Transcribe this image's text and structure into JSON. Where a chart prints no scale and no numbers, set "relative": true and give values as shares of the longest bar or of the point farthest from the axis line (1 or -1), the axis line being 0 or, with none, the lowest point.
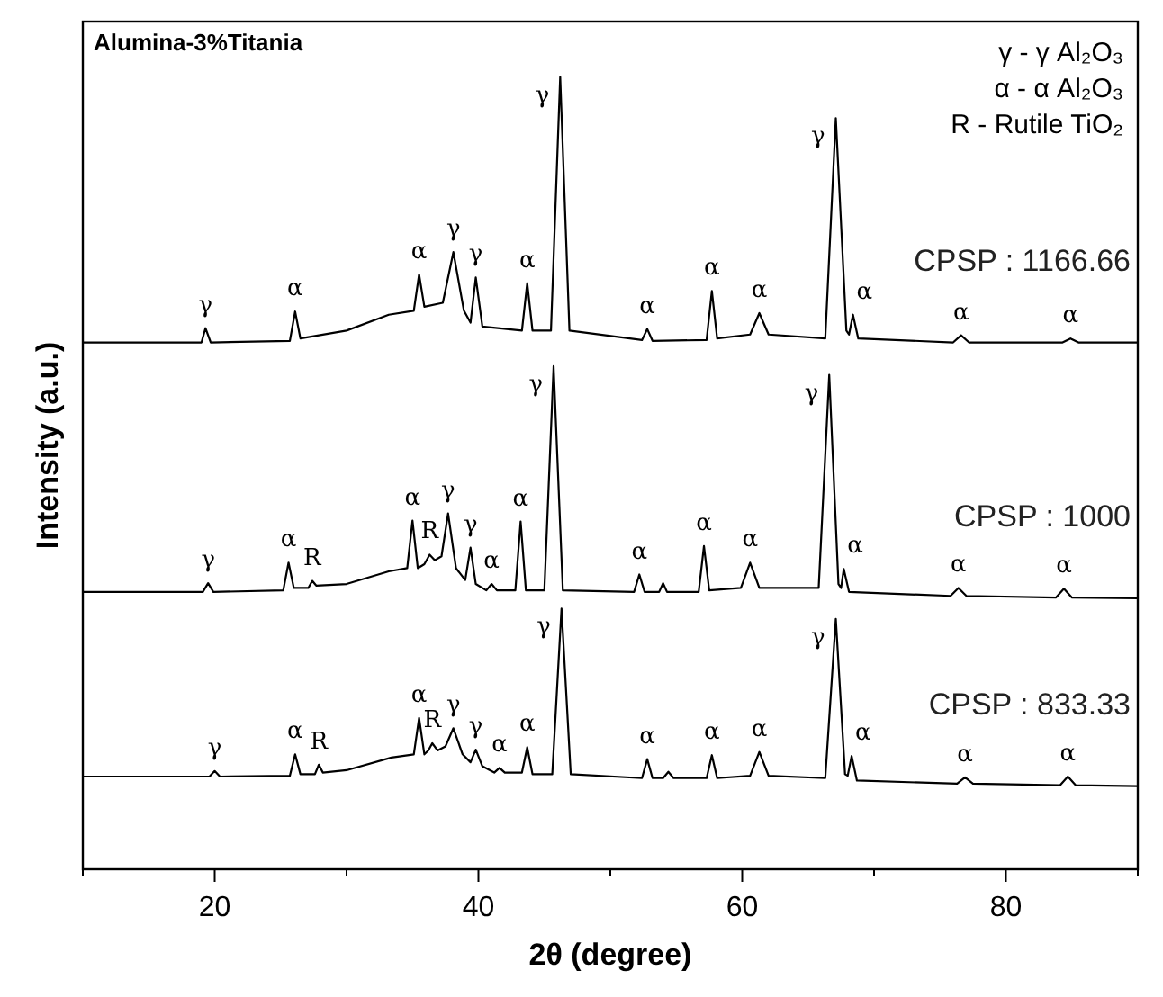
{
  "chart_data": {
    "type": "line",
    "title": "Alumina-3%Titania",
    "xlabel": "2θ (degree)",
    "ylabel": "Intensity (a.u.)",
    "relative": true,
    "marker": "none",
    "xlim": [
      10,
      90
    ],
    "xticks": [
      {
        "value": 10,
        "label": null
      },
      20,
      {
        "value": 30,
        "label": null
      },
      40,
      {
        "value": 50,
        "label": null
      },
      60,
      {
        "value": 70,
        "label": null
      },
      80,
      {
        "value": 90,
        "label": null
      }
    ],
    "series": [
      {
        "name": "CPSP : 1166.66",
        "color": "#000000",
        "x": [
          10,
          19,
          19.3,
          19.7,
          25.7,
          26.1,
          26.5,
          30,
          33.2,
          35.1,
          35.5,
          35.9,
          37.3,
          38.1,
          38.9,
          39.4,
          39.8,
          40.3,
          43.3,
          43.7,
          44.1,
          45.5,
          46.2,
          46.9,
          52.4,
          52.8,
          53.2,
          57.3,
          57.7,
          58.1,
          60.6,
          61.3,
          62.0,
          66.3,
          67.1,
          67.9,
          68.1,
          68.4,
          68.8,
          76.0,
          76.6,
          77.2,
          84.3,
          84.9,
          85.5,
          90
        ],
        "values": [
          0.665,
          0.665,
          0.683,
          0.665,
          0.667,
          0.704,
          0.67,
          0.68,
          0.7,
          0.705,
          0.751,
          0.71,
          0.715,
          0.779,
          0.705,
          0.69,
          0.747,
          0.685,
          0.68,
          0.74,
          0.68,
          0.68,
          1.0,
          0.68,
          0.668,
          0.682,
          0.667,
          0.668,
          0.73,
          0.67,
          0.675,
          0.702,
          0.675,
          0.67,
          0.948,
          0.68,
          0.675,
          0.7,
          0.67,
          0.665,
          0.674,
          0.665,
          0.665,
          0.67,
          0.665,
          0.665
        ]
      },
      {
        "name": "CPSP : 1000",
        "color": "#000000",
        "x": [
          10,
          19.1,
          19.5,
          19.9,
          25.2,
          25.6,
          26.0,
          27.1,
          27.4,
          27.7,
          30,
          33.2,
          34.6,
          35.0,
          35.4,
          35.9,
          36.3,
          36.7,
          37.2,
          37.7,
          38.3,
          39.0,
          39.4,
          39.8,
          40.6,
          41.0,
          41.4,
          42.8,
          43.2,
          43.6,
          45.0,
          45.7,
          46.4,
          51.8,
          52.2,
          52.6,
          53.7,
          54.0,
          54.3,
          56.7,
          57.1,
          57.5,
          59.9,
          60.6,
          61.3,
          65.8,
          66.6,
          67.3,
          67.5,
          67.7,
          68.1,
          75.8,
          76.4,
          77.0,
          83.8,
          84.4,
          85.0,
          90
        ],
        "values": [
          0.35,
          0.35,
          0.361,
          0.35,
          0.352,
          0.387,
          0.355,
          0.355,
          0.364,
          0.358,
          0.36,
          0.376,
          0.38,
          0.44,
          0.38,
          0.385,
          0.397,
          0.39,
          0.395,
          0.449,
          0.38,
          0.365,
          0.406,
          0.36,
          0.352,
          0.36,
          0.352,
          0.352,
          0.439,
          0.352,
          0.352,
          0.635,
          0.352,
          0.35,
          0.372,
          0.35,
          0.35,
          0.361,
          0.35,
          0.35,
          0.408,
          0.352,
          0.355,
          0.387,
          0.355,
          0.355,
          0.624,
          0.36,
          0.355,
          0.379,
          0.35,
          0.345,
          0.355,
          0.345,
          0.343,
          0.354,
          0.343,
          0.342
        ]
      },
      {
        "name": "CPSP : 833.33",
        "color": "#000000",
        "x": [
          10,
          19.6,
          20.0,
          20.4,
          25.7,
          26.1,
          26.5,
          27.6,
          27.9,
          28.2,
          30,
          33.4,
          35.1,
          35.5,
          35.9,
          36.2,
          36.5,
          36.9,
          37.5,
          38.1,
          38.8,
          39.4,
          39.8,
          40.3,
          41.2,
          41.6,
          42.0,
          43.3,
          43.7,
          44.1,
          45.6,
          46.3,
          47.0,
          52.4,
          52.8,
          53.2,
          54.0,
          54.4,
          54.8,
          57.3,
          57.7,
          58.1,
          60.6,
          61.3,
          62.0,
          66.3,
          67.1,
          67.8,
          68.0,
          68.3,
          68.7,
          76.3,
          76.9,
          77.5,
          84.1,
          84.7,
          85.3,
          90
        ],
        "values": [
          0.117,
          0.117,
          0.124,
          0.117,
          0.118,
          0.145,
          0.12,
          0.12,
          0.132,
          0.122,
          0.125,
          0.141,
          0.145,
          0.191,
          0.145,
          0.15,
          0.159,
          0.15,
          0.155,
          0.178,
          0.145,
          0.135,
          0.151,
          0.13,
          0.122,
          0.128,
          0.122,
          0.122,
          0.154,
          0.12,
          0.12,
          0.329,
          0.12,
          0.115,
          0.139,
          0.115,
          0.115,
          0.123,
          0.115,
          0.115,
          0.144,
          0.115,
          0.118,
          0.148,
          0.118,
          0.115,
          0.316,
          0.12,
          0.118,
          0.143,
          0.112,
          0.108,
          0.116,
          0.108,
          0.106,
          0.117,
          0.106,
          0.105
        ]
      }
    ],
    "annotations": [
      "γ - γ  Al₂O₃",
      "α - α  Al₂O₃",
      "R -   Rutile TiO₂",
      {
        "text": "γ",
        "x": 19.3,
        "y": 0.683
      },
      {
        "text": "α",
        "x": 26.1,
        "y": 0.704
      },
      {
        "text": "α",
        "x": 35.5,
        "y": 0.751
      },
      {
        "text": "γ",
        "x": 38.1,
        "y": 0.779
      },
      {
        "text": "γ",
        "x": 39.8,
        "y": 0.747
      },
      {
        "text": "α",
        "x": 43.7,
        "y": 0.74
      },
      {
        "text": "γ",
        "x": 46.2,
        "y": 1.0
      },
      {
        "text": "α",
        "x": 52.8,
        "y": 0.682
      },
      {
        "text": "α",
        "x": 57.7,
        "y": 0.73
      },
      {
        "text": "α",
        "x": 61.3,
        "y": 0.702
      },
      {
        "text": "γ",
        "x": 67.1,
        "y": 0.948
      },
      {
        "text": "α",
        "x": 68.4,
        "y": 0.7
      },
      {
        "text": "α",
        "x": 76.6,
        "y": 0.674
      },
      {
        "text": "α",
        "x": 84.9,
        "y": 0.67
      },
      {
        "text": "γ",
        "x": 19.5,
        "y": 0.361
      },
      {
        "text": "α",
        "x": 25.6,
        "y": 0.387
      },
      {
        "text": "R",
        "x": 27.4,
        "y": 0.364
      },
      {
        "text": "α",
        "x": 35.0,
        "y": 0.44
      },
      {
        "text": "R",
        "x": 36.3,
        "y": 0.397
      },
      {
        "text": "γ",
        "x": 37.7,
        "y": 0.449
      },
      {
        "text": "γ",
        "x": 39.4,
        "y": 0.406
      },
      {
        "text": "α",
        "x": 41.0,
        "y": 0.36
      },
      {
        "text": "α",
        "x": 43.2,
        "y": 0.439
      },
      {
        "text": "γ",
        "x": 45.7,
        "y": 0.635
      },
      {
        "text": "α",
        "x": 52.2,
        "y": 0.372
      },
      {
        "text": "α",
        "x": 57.1,
        "y": 0.408
      },
      {
        "text": "α",
        "x": 60.6,
        "y": 0.387
      },
      {
        "text": "γ",
        "x": 66.6,
        "y": 0.624
      },
      {
        "text": "α",
        "x": 67.7,
        "y": 0.379
      },
      {
        "text": "α",
        "x": 76.4,
        "y": 0.355
      },
      {
        "text": "α",
        "x": 84.4,
        "y": 0.354
      },
      {
        "text": "γ",
        "x": 20.0,
        "y": 0.124
      },
      {
        "text": "α",
        "x": 26.1,
        "y": 0.145
      },
      {
        "text": "R",
        "x": 27.9,
        "y": 0.132
      },
      {
        "text": "α",
        "x": 35.5,
        "y": 0.191
      },
      {
        "text": "R",
        "x": 36.5,
        "y": 0.159
      },
      {
        "text": "γ",
        "x": 38.1,
        "y": 0.178
      },
      {
        "text": "γ",
        "x": 39.8,
        "y": 0.151
      },
      {
        "text": "α",
        "x": 41.6,
        "y": 0.128
      },
      {
        "text": "α",
        "x": 43.7,
        "y": 0.154
      },
      {
        "text": "γ",
        "x": 46.3,
        "y": 0.329
      },
      {
        "text": "α",
        "x": 52.8,
        "y": 0.139
      },
      {
        "text": "α",
        "x": 57.7,
        "y": 0.144
      },
      {
        "text": "α",
        "x": 61.3,
        "y": 0.148
      },
      {
        "text": "γ",
        "x": 67.1,
        "y": 0.316
      },
      {
        "text": "α",
        "x": 68.3,
        "y": 0.143
      },
      {
        "text": "α",
        "x": 76.9,
        "y": 0.116
      },
      {
        "text": "α",
        "x": 84.7,
        "y": 0.117
      }
    ]
  }
}
